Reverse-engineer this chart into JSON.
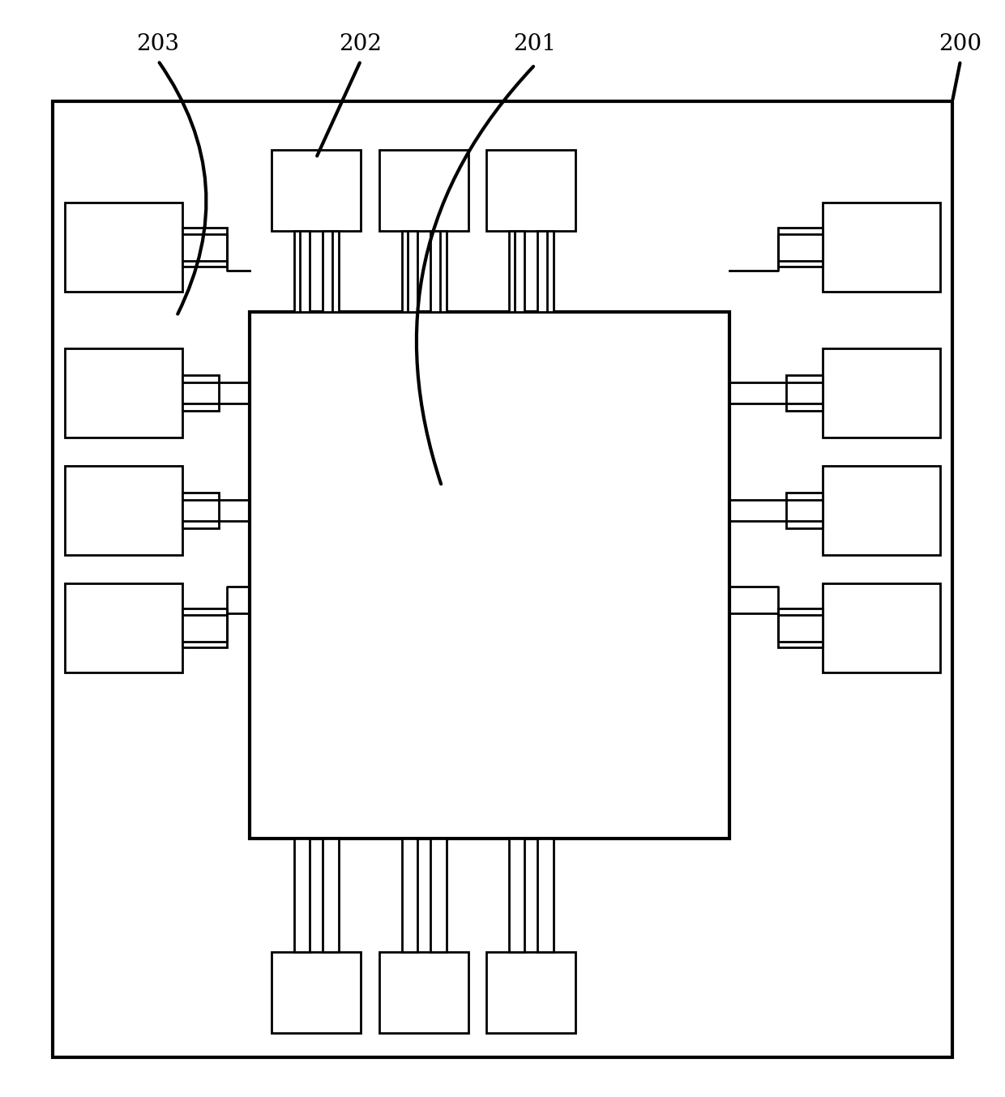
{
  "background_color": "#ffffff",
  "line_color": "#000000",
  "lw_thick": 3.0,
  "lw_thin": 2.0,
  "fig_width": 12.4,
  "fig_height": 13.54,
  "label_fontsize": 20
}
